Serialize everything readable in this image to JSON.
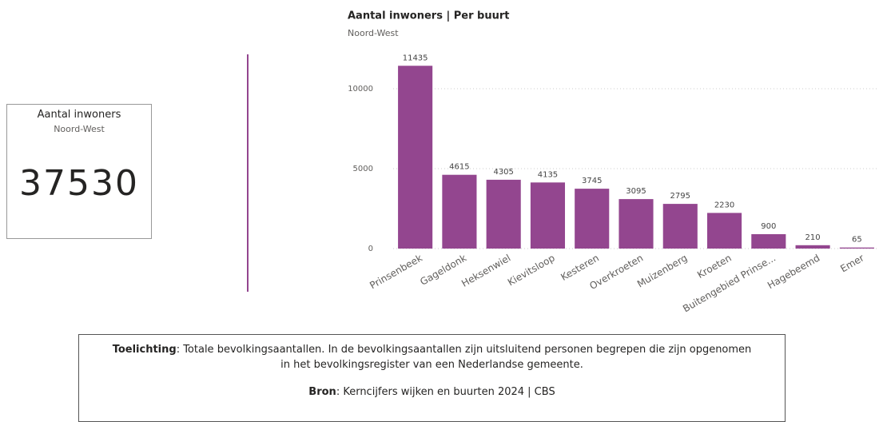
{
  "card": {
    "title": "Aantal inwoners",
    "subtitle": "Noord-West",
    "value": 37530
  },
  "chart_data": {
    "type": "bar",
    "title": "Aantal inwoners | Per buurt",
    "subtitle": "Noord-West",
    "categories": [
      "Prinsenbeek",
      "Gageldonk",
      "Heksenwiel",
      "Kievitsloop",
      "Kesteren",
      "Overkroeten",
      "Muizenberg",
      "Kroeten",
      "Buitengebied Prinse...",
      "Hagebeemd",
      "Emer"
    ],
    "values": [
      11435,
      4615,
      4305,
      4135,
      3745,
      3095,
      2795,
      2230,
      900,
      210,
      65
    ],
    "color": "#93468f",
    "ylim": [
      0,
      12000
    ],
    "yticks": [
      0,
      5000,
      10000
    ],
    "grid": true
  },
  "note": {
    "label": "Toelichting",
    "text": ": Totale bevolkingsaantallen. In de bevolkingsaantallen zijn uitsluitend personen begrepen die zijn opgenomen in het bevolkingsregister van een Nederlandse gemeente.",
    "source_label": "Bron",
    "source_text": ":  Kerncijfers wijken en buurten 2024 | CBS"
  }
}
